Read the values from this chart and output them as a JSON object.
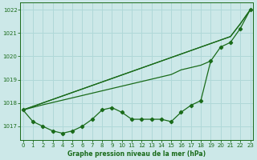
{
  "title": "Graphe pression niveau de la mer (hPa)",
  "bg_color": "#cce8e8",
  "line_color": "#1a6b1a",
  "grid_color": "#b0d8d8",
  "ylim": [
    1016.4,
    1022.3
  ],
  "xlim": [
    -0.3,
    23.3
  ],
  "yticks": [
    1017,
    1018,
    1019,
    1020,
    1021,
    1022
  ],
  "xticks": [
    0,
    1,
    2,
    3,
    4,
    5,
    6,
    7,
    8,
    9,
    10,
    11,
    12,
    13,
    14,
    15,
    16,
    17,
    18,
    19,
    20,
    21,
    22,
    23
  ],
  "straight_lines": [
    [
      [
        0,
        23
      ],
      [
        1017.7,
        1022.0
      ]
    ],
    [
      [
        0,
        23
      ],
      [
        1017.7,
        1022.0
      ]
    ],
    [
      [
        0,
        19
      ],
      [
        1017.7,
        1019.8
      ]
    ]
  ],
  "measured": [
    1017.7,
    1017.2,
    1017.0,
    1016.8,
    1016.7,
    1016.8,
    1017.0,
    1017.3,
    1017.7,
    1017.8,
    1017.6,
    1017.3,
    1017.3,
    1017.3,
    1017.3,
    1017.2,
    1017.6,
    1017.9,
    1018.1,
    1019.8,
    1020.4,
    1020.6,
    1021.2,
    1022.0
  ],
  "forecast1": [
    1017.7,
    1017.85,
    1018.0,
    1018.15,
    1018.3,
    1018.45,
    1018.6,
    1018.75,
    1018.9,
    1019.05,
    1019.2,
    1019.35,
    1019.5,
    1019.65,
    1019.8,
    1019.95,
    1020.1,
    1020.25,
    1020.4,
    1020.55,
    1020.7,
    1020.85,
    1021.4,
    1022.0
  ],
  "forecast2": [
    1017.7,
    1017.85,
    1018.0,
    1018.15,
    1018.3,
    1018.45,
    1018.6,
    1018.75,
    1018.9,
    1019.05,
    1019.2,
    1019.35,
    1019.5,
    1019.65,
    1019.8,
    1019.95,
    1020.1,
    1020.25,
    1020.4,
    1020.55,
    1020.7,
    1020.85,
    1021.4,
    1022.0
  ],
  "forecast3_x": [
    0,
    1,
    2,
    3,
    4,
    5,
    6,
    7,
    8,
    9,
    10,
    11,
    12,
    13,
    14,
    15,
    16,
    17,
    18,
    19
  ],
  "forecast3_y": [
    1017.7,
    1017.81,
    1017.92,
    1018.02,
    1018.12,
    1018.22,
    1018.32,
    1018.42,
    1018.52,
    1018.62,
    1018.72,
    1018.82,
    1018.92,
    1019.02,
    1019.12,
    1019.22,
    1019.42,
    1019.52,
    1019.62,
    1019.8
  ]
}
